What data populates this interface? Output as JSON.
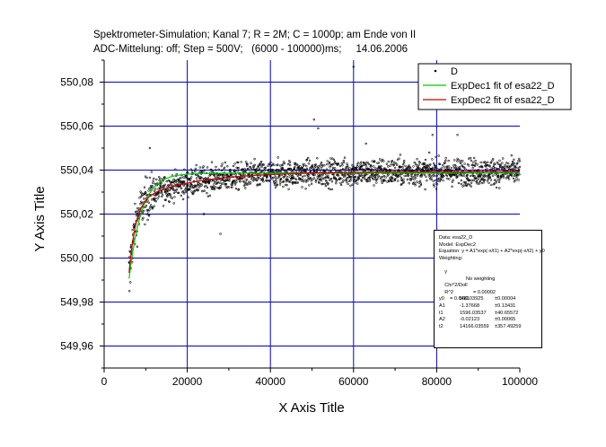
{
  "titles": {
    "line1": "Spektrometer-Simulation; Kanal 7; R = 2M; C = 1000p; am Ende von II",
    "line2": "ADC-Mittelung: off; Step = 500V;   (6000 - 100000)ms;     14.06.2006"
  },
  "chart_data": {
    "type": "scatter",
    "xlabel": "X Axis Title",
    "ylabel": "Y Axis Title",
    "xlim": [
      0,
      100000
    ],
    "ylim": [
      549.95,
      550.09
    ],
    "x_ticks": [
      0,
      20000,
      40000,
      60000,
      80000,
      100000
    ],
    "x_tick_labels": [
      "0",
      "20000",
      "40000",
      "60000",
      "80000",
      "100000"
    ],
    "y_ticks": [
      549.96,
      549.98,
      550.0,
      550.02,
      550.04,
      550.06,
      550.08
    ],
    "y_tick_labels": [
      "549,96",
      "549,98",
      "550,00",
      "550,02",
      "550,04",
      "550,06",
      "550,08"
    ],
    "grid": true,
    "legend_position": "top-right",
    "series": [
      {
        "name": "D",
        "kind": "scatter",
        "color": "#000000",
        "x_range": [
          6000,
          100000
        ],
        "approx_points": 1900,
        "trend": "exponential rise from about 549.99 near x = 6000 to a plateau near 550.038",
        "scatter_sd": 0.003,
        "notable_points": [
          {
            "x": 6100,
            "y": 549.985
          },
          {
            "x": 6300,
            "y": 549.989
          },
          {
            "x": 11000,
            "y": 550.05
          },
          {
            "x": 24000,
            "y": 550.02
          },
          {
            "x": 28000,
            "y": 550.011
          },
          {
            "x": 50500,
            "y": 550.063
          },
          {
            "x": 51500,
            "y": 550.059
          },
          {
            "x": 60000,
            "y": 550.087
          },
          {
            "x": 63000,
            "y": 550.052
          },
          {
            "x": 85000,
            "y": 550.056
          },
          {
            "x": 79000,
            "y": 550.056
          }
        ]
      },
      {
        "name": "ExpDec1 fit of esa22_D",
        "kind": "line",
        "color": "#00cc00",
        "x_range": [
          6000,
          100000
        ],
        "y0": 550.0386,
        "A1": -0.06,
        "t1": 3000
      },
      {
        "name": "ExpDec2 fit of esa22_D",
        "kind": "line",
        "color": "#cc0000",
        "x_range": [
          6000,
          100000
        ],
        "y0": 550.03925,
        "A1": -1.37668,
        "t1": 1596.03537,
        "A2": -0.02123,
        "t2": 14166.03559
      }
    ]
  },
  "stats_box": {
    "data": "Data: esa22_D",
    "model": "Model: ExpDec2",
    "equation": "Equation: y = A1*exp(-x/t1) + A2*exp(-x/t2) + y0",
    "weighting_title": "Weighting:",
    "weighting_key": "y",
    "weighting_value": "No weighting",
    "chi_key": "Chi^2/DoF",
    "chi_value": "= 0.00002",
    "r2_key": "R^2",
    "r2_value": "= 0.6481",
    "params": [
      {
        "name": "y0",
        "value": "550.03925",
        "error": "±0.00004"
      },
      {
        "name": "A1",
        "value": "-1.37668",
        "error": "±0.13431"
      },
      {
        "name": "t1",
        "value": "1596.03537",
        "error": "±40.65572"
      },
      {
        "name": "A2",
        "value": "-0.02123",
        "error": "±0.00065"
      },
      {
        "name": "t2",
        "value": "14166.03559",
        "error": "±357.49259"
      }
    ]
  }
}
